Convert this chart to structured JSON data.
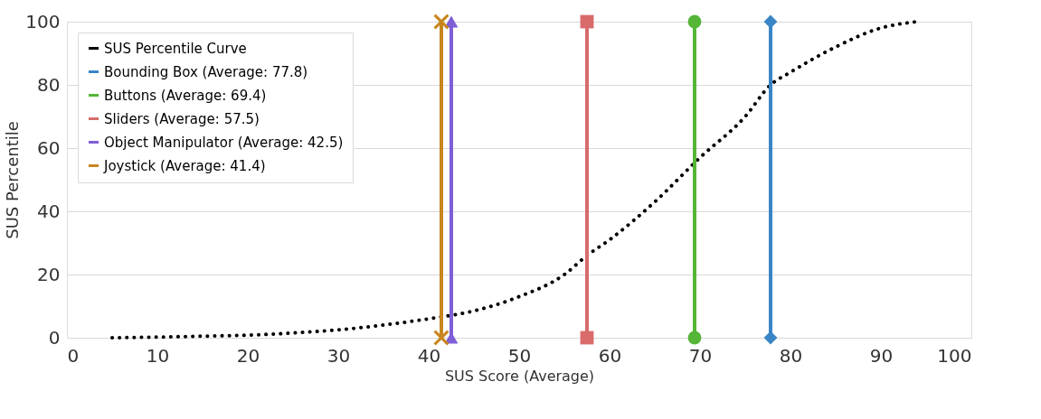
{
  "chart_data": {
    "type": "line",
    "xlabel": "SUS Score (Average)",
    "ylabel": "SUS Percentile",
    "xlim": [
      0,
      100
    ],
    "xticks": [
      0,
      10,
      20,
      30,
      40,
      50,
      60,
      70,
      80,
      90,
      100
    ],
    "ylim": [
      0,
      100
    ],
    "yticks": [
      0,
      20,
      40,
      60,
      80,
      100
    ],
    "grid": "y",
    "legend": "top left",
    "series": [
      {
        "name": "SUS Percentile Curve",
        "color": "#000000",
        "line_style": "dotted",
        "marker": "none",
        "x": [
          5,
          10,
          15,
          20,
          25,
          30,
          35,
          40,
          45,
          50,
          55,
          57.5,
          60,
          65,
          70,
          75,
          77.8,
          80,
          85,
          90,
          94
        ],
        "values": [
          0,
          0.2,
          0.5,
          0.8,
          1.5,
          2.5,
          4,
          6,
          8.5,
          13,
          20,
          26,
          31,
          43,
          57,
          70,
          80,
          84,
          92,
          98,
          100
        ]
      },
      {
        "name": "Bounding Box (Average: 77.8)",
        "color": "#3a85c6",
        "line_style": "solid",
        "marker": "diamond",
        "x": [
          77.8,
          77.8
        ],
        "values": [
          0,
          100
        ]
      },
      {
        "name": "Buttons (Average: 69.4)",
        "color": "#55b536",
        "line_style": "solid",
        "marker": "circle",
        "x": [
          69.4,
          69.4
        ],
        "values": [
          0,
          100
        ]
      },
      {
        "name": "Sliders (Average: 57.5)",
        "color": "#d96b6b",
        "line_style": "solid",
        "marker": "square",
        "x": [
          57.5,
          57.5
        ],
        "values": [
          0,
          100
        ]
      },
      {
        "name": "Object Manipulator (Average: 42.5)",
        "color": "#7f5fd6",
        "line_style": "solid",
        "marker": "triangle",
        "x": [
          42.5,
          42.5
        ],
        "values": [
          0,
          100
        ]
      },
      {
        "name": "Joystick (Average: 41.4)",
        "color": "#c8861e",
        "line_style": "solid",
        "marker": "cross",
        "x": [
          41.4,
          41.4
        ],
        "values": [
          0,
          100
        ]
      }
    ]
  }
}
